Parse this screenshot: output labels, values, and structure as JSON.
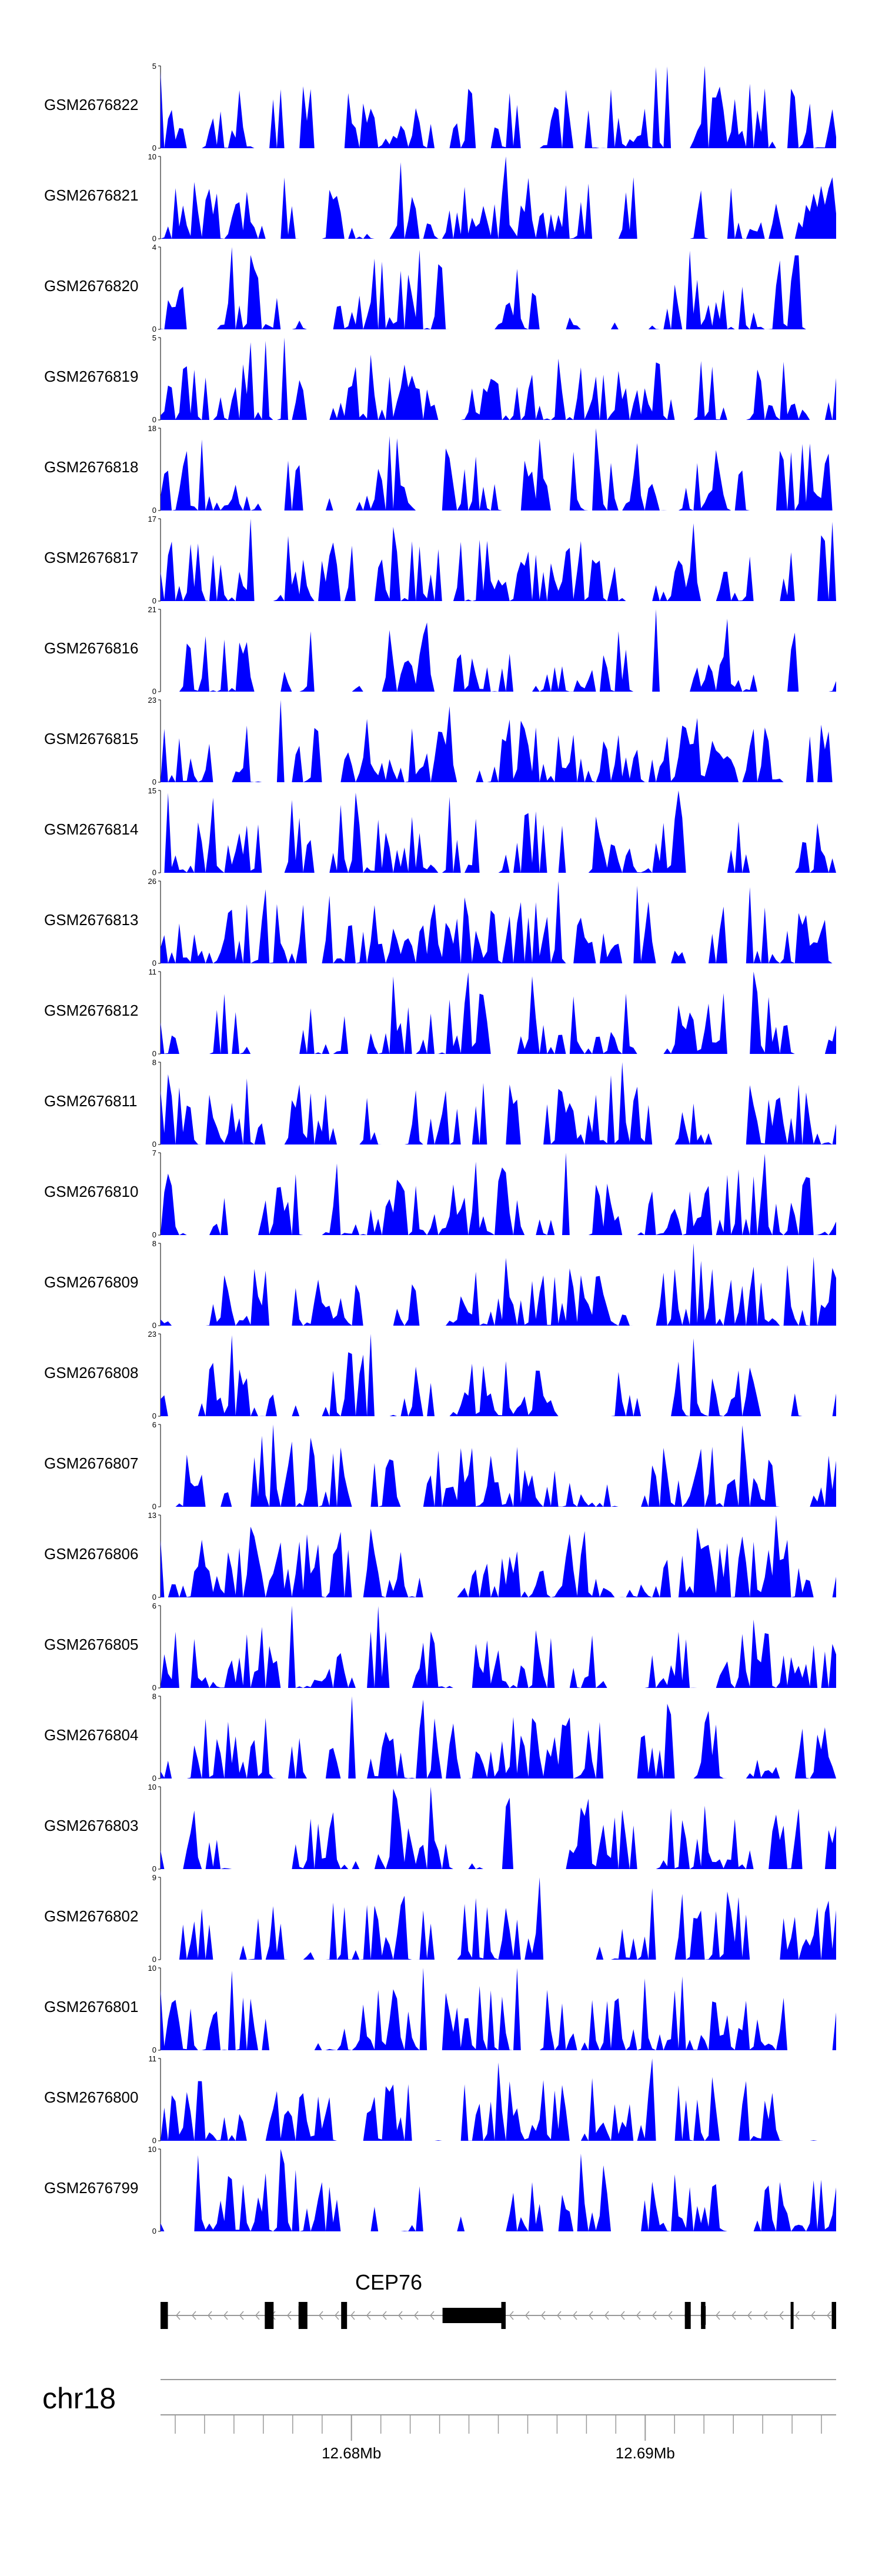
{
  "chart_data": {
    "type": "area",
    "title": "",
    "fill_color": "#0000ff",
    "chromosome": "chr18",
    "x_range_mb": [
      12.6735,
      12.6965
    ],
    "x_ticks_mb": [
      12.68,
      12.69
    ],
    "x_tick_labels": [
      "12.68Mb",
      "12.69Mb"
    ],
    "tracks": [
      {
        "name": "GSM2676822",
        "ymax": 5
      },
      {
        "name": "GSM2676821",
        "ymax": 10
      },
      {
        "name": "GSM2676820",
        "ymax": 4
      },
      {
        "name": "GSM2676819",
        "ymax": 5
      },
      {
        "name": "GSM2676818",
        "ymax": 18
      },
      {
        "name": "GSM2676817",
        "ymax": 17
      },
      {
        "name": "GSM2676816",
        "ymax": 21
      },
      {
        "name": "GSM2676815",
        "ymax": 23
      },
      {
        "name": "GSM2676814",
        "ymax": 15
      },
      {
        "name": "GSM2676813",
        "ymax": 26
      },
      {
        "name": "GSM2676812",
        "ymax": 11
      },
      {
        "name": "GSM2676811",
        "ymax": 8
      },
      {
        "name": "GSM2676810",
        "ymax": 7
      },
      {
        "name": "GSM2676809",
        "ymax": 8
      },
      {
        "name": "GSM2676808",
        "ymax": 23
      },
      {
        "name": "GSM2676807",
        "ymax": 6
      },
      {
        "name": "GSM2676806",
        "ymax": 13
      },
      {
        "name": "GSM2676805",
        "ymax": 6
      },
      {
        "name": "GSM2676804",
        "ymax": 8
      },
      {
        "name": "GSM2676803",
        "ymax": 10
      },
      {
        "name": "GSM2676802",
        "ymax": 9
      },
      {
        "name": "GSM2676801",
        "ymax": 10
      },
      {
        "name": "GSM2676800",
        "ymax": 11
      },
      {
        "name": "GSM2676799",
        "ymax": 10
      }
    ],
    "gene": {
      "name": "CEP76",
      "strand": "-",
      "start_mb": 12.6735,
      "end_mb": 12.6965,
      "exons_mb": [
        [
          12.6735,
          12.67375
        ],
        [
          12.67705,
          12.67735
        ],
        [
          12.6782,
          12.6785
        ],
        [
          12.67965,
          12.67985
        ],
        [
          12.6831,
          12.6851
        ],
        [
          12.6851,
          12.68525
        ],
        [
          12.69135,
          12.69155
        ],
        [
          12.6919,
          12.69205
        ],
        [
          12.69495,
          12.69505
        ],
        [
          12.69635,
          12.6965
        ]
      ]
    }
  }
}
